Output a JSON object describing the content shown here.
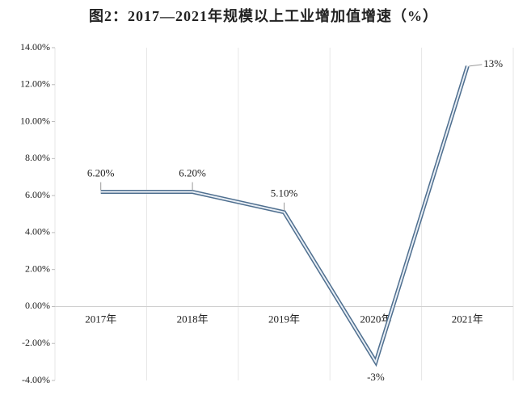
{
  "chart_data": {
    "type": "line",
    "title": "图2：2017—2021年规模以上工业增加值增速（%）",
    "categories": [
      "2017年",
      "2018年",
      "2019年",
      "2020年",
      "2021年"
    ],
    "series": [
      {
        "name": "规模以上工业增加值增速",
        "color": "#6f8fae",
        "values": [
          6.2,
          6.2,
          5.1,
          -3,
          13
        ],
        "value_labels": [
          "6.20%",
          "6.20%",
          "5.10%",
          "-3%",
          "13%"
        ]
      }
    ],
    "ylim": [
      -4,
      14
    ],
    "yticks": [
      {
        "value": -4,
        "label": "-4.00%"
      },
      {
        "value": -2,
        "label": "-2.00%"
      },
      {
        "value": 0,
        "label": "0.00%"
      },
      {
        "value": 2,
        "label": "2.00%"
      },
      {
        "value": 4,
        "label": "4.00%"
      },
      {
        "value": 6,
        "label": "6.00%"
      },
      {
        "value": 8,
        "label": "8.00%"
      },
      {
        "value": 10,
        "label": "10.00%"
      },
      {
        "value": 12,
        "label": "12.00%"
      },
      {
        "value": 14,
        "label": "14.00%"
      }
    ],
    "grid": true
  }
}
